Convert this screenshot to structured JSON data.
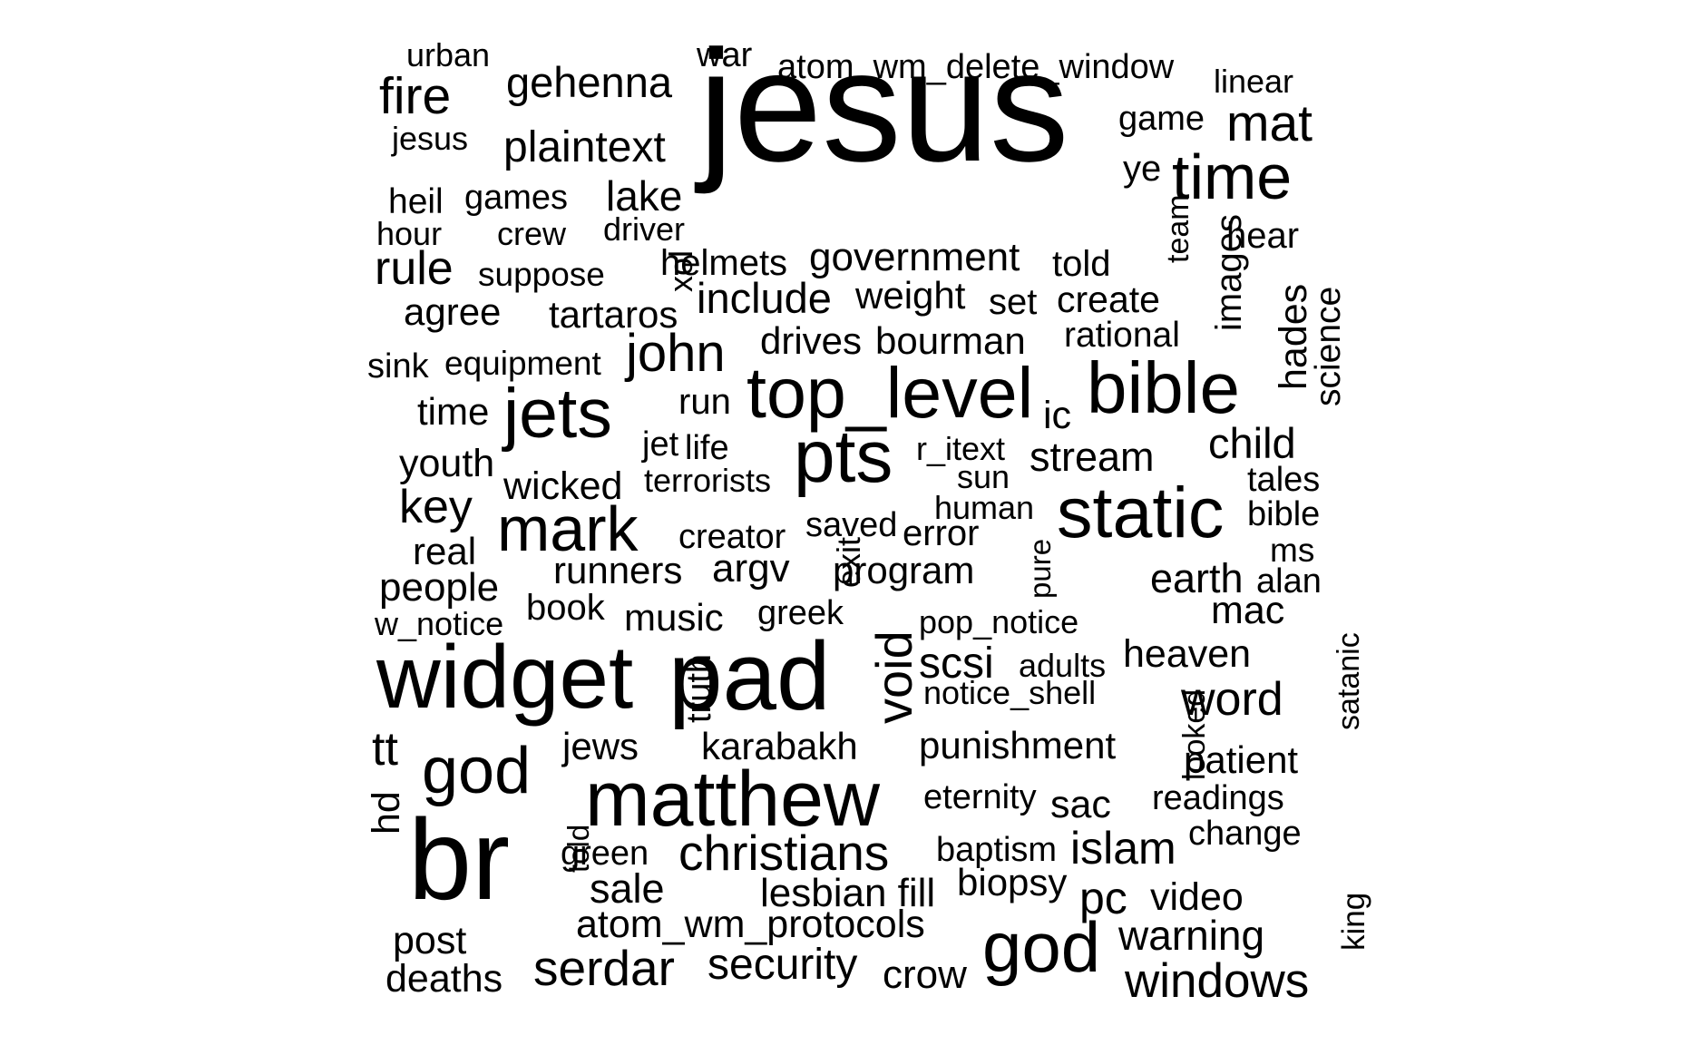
{
  "words": [
    "jesus",
    "widget",
    "pad",
    "br",
    "matthew",
    "top_level",
    "static",
    "bible",
    "pts",
    "jets",
    "mark",
    "god",
    "god",
    "time",
    "mat",
    "gehenna",
    "plaintext",
    "fire",
    "christians",
    "serdar",
    "security",
    "windows",
    "word",
    "john",
    "void",
    "scsi",
    "stream",
    "child",
    "include",
    "government",
    "lake",
    "rule",
    "key",
    "people",
    "youth",
    "wicked",
    "runners",
    "argv",
    "program",
    "error",
    "creator",
    "saved",
    "earth",
    "heaven",
    "punishment",
    "patient",
    "islam",
    "sac",
    "pc",
    "biopsy",
    "lesbian fill",
    "sale",
    "atom_wm_protocols",
    "warning",
    "crow",
    "deaths",
    "post",
    "video",
    "change",
    "readings",
    "eternity",
    "baptism",
    "green",
    "told",
    "hd",
    "tt",
    "jews",
    "karabakh",
    "music",
    "book",
    "w_notice",
    "real",
    "time",
    "sink",
    "equipment",
    "agree",
    "suppose",
    "tartaros",
    "weight",
    "set",
    "create",
    "told",
    "helmets",
    "drives",
    "bourman",
    "rational",
    "images",
    "team",
    "hades",
    "science",
    "hear",
    "ye",
    "game",
    "linear",
    "atom_wm_delete_window",
    "war",
    "urban",
    "jesus",
    "heil",
    "games",
    "driver",
    "hour",
    "crew",
    "xol",
    "run",
    "ic",
    "jet",
    "life",
    "r_itext",
    "sun",
    "human",
    "terrorists",
    "tales",
    "bible",
    "ms",
    "alan",
    "mac",
    "pop_notice",
    "greek",
    "adults",
    "notice_shell",
    "satanic",
    "looked",
    "truth",
    "exit",
    "pure",
    "king"
  ],
  "colors": {
    "text": "#000000",
    "background": "#ffffff"
  }
}
